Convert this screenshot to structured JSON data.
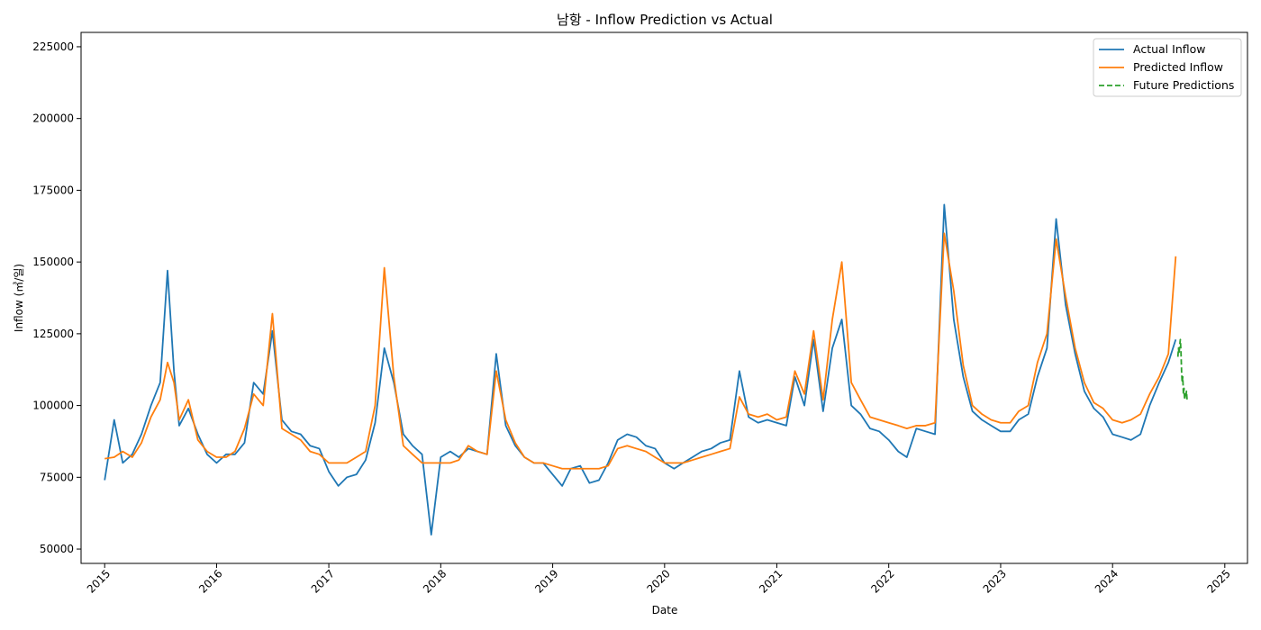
{
  "chart_data": {
    "type": "line",
    "title": "남항 - Inflow Prediction vs Actual",
    "xlabel": "Date",
    "ylabel": "Inflow (㎥/일)",
    "xlim": [
      "2014-10-16",
      "2025-03-16"
    ],
    "ylim": [
      45000,
      230000
    ],
    "x_ticks": [
      "2015",
      "2016",
      "2017",
      "2018",
      "2019",
      "2020",
      "2021",
      "2022",
      "2023",
      "2024",
      "2025"
    ],
    "y_ticks": [
      "50000",
      "75000",
      "100000",
      "125000",
      "150000",
      "175000",
      "200000",
      "225000"
    ],
    "y_tick_values": [
      50000,
      75000,
      100000,
      125000,
      150000,
      175000,
      200000,
      225000
    ],
    "grid": false,
    "legend_position": "top-right",
    "colors": {
      "actual": "#1f77b4",
      "predicted": "#ff7f0e",
      "future": "#2ca02c"
    },
    "series": [
      {
        "name": "Actual Inflow",
        "style": "solid",
        "x": [
          "2015-01-01",
          "2015-02-01",
          "2015-03-01",
          "2015-04-01",
          "2015-05-01",
          "2015-06-01",
          "2015-07-01",
          "2015-07-25",
          "2015-08-15",
          "2015-09-01",
          "2015-10-01",
          "2015-11-01",
          "2015-12-01",
          "2016-01-01",
          "2016-02-01",
          "2016-03-01",
          "2016-04-01",
          "2016-05-01",
          "2016-06-01",
          "2016-07-01",
          "2016-08-01",
          "2016-09-01",
          "2016-10-01",
          "2016-11-01",
          "2016-12-01",
          "2017-01-01",
          "2017-02-01",
          "2017-03-01",
          "2017-04-01",
          "2017-05-01",
          "2017-06-01",
          "2017-07-01",
          "2017-08-01",
          "2017-09-01",
          "2017-10-01",
          "2017-11-01",
          "2017-12-01",
          "2018-01-01",
          "2018-02-01",
          "2018-03-01",
          "2018-04-01",
          "2018-05-01",
          "2018-06-01",
          "2018-07-01",
          "2018-08-01",
          "2018-09-01",
          "2018-10-01",
          "2018-11-01",
          "2018-12-01",
          "2019-01-01",
          "2019-02-01",
          "2019-03-01",
          "2019-04-01",
          "2019-05-01",
          "2019-06-01",
          "2019-07-01",
          "2019-08-01",
          "2019-09-01",
          "2019-10-01",
          "2019-11-01",
          "2019-12-01",
          "2020-01-01",
          "2020-02-01",
          "2020-03-01",
          "2020-04-01",
          "2020-05-01",
          "2020-06-01",
          "2020-07-01",
          "2020-08-01",
          "2020-09-01",
          "2020-10-01",
          "2020-11-01",
          "2020-12-01",
          "2021-01-01",
          "2021-02-01",
          "2021-03-01",
          "2021-04-01",
          "2021-05-01",
          "2021-06-01",
          "2021-07-01",
          "2021-08-01",
          "2021-09-01",
          "2021-10-01",
          "2021-11-01",
          "2021-12-01",
          "2022-01-01",
          "2022-02-01",
          "2022-03-01",
          "2022-04-01",
          "2022-05-01",
          "2022-06-01",
          "2022-07-01",
          "2022-08-01",
          "2022-09-01",
          "2022-10-01",
          "2022-11-01",
          "2022-12-01",
          "2023-01-01",
          "2023-02-01",
          "2023-03-01",
          "2023-04-01",
          "2023-05-01",
          "2023-06-01",
          "2023-07-01",
          "2023-08-01",
          "2023-09-01",
          "2023-10-01",
          "2023-11-01",
          "2023-12-01",
          "2024-01-01",
          "2024-02-01",
          "2024-03-01",
          "2024-04-01",
          "2024-05-01",
          "2024-06-01",
          "2024-07-01",
          "2024-07-25"
        ],
        "y": [
          74000,
          95000,
          80000,
          83000,
          90000,
          100000,
          108000,
          147000,
          112000,
          93000,
          99000,
          90000,
          83000,
          80000,
          83000,
          83000,
          87000,
          108000,
          104000,
          126000,
          95000,
          91000,
          90000,
          86000,
          85000,
          77000,
          72000,
          75000,
          76000,
          81000,
          94000,
          120000,
          108000,
          90000,
          86000,
          83000,
          55000,
          82000,
          84000,
          82000,
          85000,
          84000,
          83000,
          118000,
          93000,
          86000,
          82000,
          80000,
          80000,
          76000,
          72000,
          78000,
          79000,
          73000,
          74000,
          80000,
          88000,
          90000,
          89000,
          86000,
          85000,
          80000,
          78000,
          80000,
          82000,
          84000,
          85000,
          87000,
          88000,
          112000,
          96000,
          94000,
          95000,
          94000,
          93000,
          110000,
          100000,
          123000,
          98000,
          120000,
          130000,
          100000,
          97000,
          92000,
          91000,
          88000,
          84000,
          82000,
          92000,
          91000,
          90000,
          170000,
          130000,
          110000,
          98000,
          95000,
          93000,
          91000,
          91000,
          95000,
          97000,
          110000,
          120000,
          165000,
          135000,
          118000,
          105000,
          99000,
          96000,
          90000,
          89000,
          88000,
          90000,
          100000,
          108000,
          115000,
          123000
        ]
      },
      {
        "name": "Predicted Inflow",
        "style": "solid",
        "x": [
          "2015-01-01",
          "2015-02-01",
          "2015-03-01",
          "2015-04-01",
          "2015-05-01",
          "2015-06-01",
          "2015-07-01",
          "2015-07-25",
          "2015-08-15",
          "2015-09-01",
          "2015-10-01",
          "2015-11-01",
          "2015-12-01",
          "2016-01-01",
          "2016-02-01",
          "2016-03-01",
          "2016-04-01",
          "2016-05-01",
          "2016-06-01",
          "2016-07-01",
          "2016-08-01",
          "2016-09-01",
          "2016-10-01",
          "2016-11-01",
          "2016-12-01",
          "2017-01-01",
          "2017-02-01",
          "2017-03-01",
          "2017-04-01",
          "2017-05-01",
          "2017-06-01",
          "2017-07-01",
          "2017-08-01",
          "2017-09-01",
          "2017-10-01",
          "2017-11-01",
          "2017-12-01",
          "2018-01-01",
          "2018-02-01",
          "2018-03-01",
          "2018-04-01",
          "2018-05-01",
          "2018-06-01",
          "2018-07-01",
          "2018-08-01",
          "2018-09-01",
          "2018-10-01",
          "2018-11-01",
          "2018-12-01",
          "2019-01-01",
          "2019-02-01",
          "2019-03-01",
          "2019-04-01",
          "2019-05-01",
          "2019-06-01",
          "2019-07-01",
          "2019-08-01",
          "2019-09-01",
          "2019-10-01",
          "2019-11-01",
          "2019-12-01",
          "2020-01-01",
          "2020-02-01",
          "2020-03-01",
          "2020-04-01",
          "2020-05-01",
          "2020-06-01",
          "2020-07-01",
          "2020-08-01",
          "2020-09-01",
          "2020-10-01",
          "2020-11-01",
          "2020-12-01",
          "2021-01-01",
          "2021-02-01",
          "2021-03-01",
          "2021-04-01",
          "2021-05-01",
          "2021-06-01",
          "2021-07-01",
          "2021-08-01",
          "2021-09-01",
          "2021-10-01",
          "2021-11-01",
          "2021-12-01",
          "2022-01-01",
          "2022-02-01",
          "2022-03-01",
          "2022-04-01",
          "2022-05-01",
          "2022-06-01",
          "2022-07-01",
          "2022-08-01",
          "2022-09-01",
          "2022-10-01",
          "2022-11-01",
          "2022-12-01",
          "2023-01-01",
          "2023-02-01",
          "2023-03-01",
          "2023-04-01",
          "2023-05-01",
          "2023-06-01",
          "2023-07-01",
          "2023-08-01",
          "2023-09-01",
          "2023-10-01",
          "2023-11-01",
          "2023-12-01",
          "2024-01-01",
          "2024-02-01",
          "2024-03-01",
          "2024-04-01",
          "2024-05-01",
          "2024-06-01",
          "2024-07-01",
          "2024-07-25"
        ],
        "y": [
          81500,
          82000,
          84000,
          82000,
          87000,
          96000,
          102000,
          115000,
          108000,
          95000,
          102000,
          88000,
          84000,
          82000,
          82000,
          84000,
          92000,
          104000,
          100000,
          132000,
          92000,
          90000,
          88000,
          84000,
          83000,
          80000,
          80000,
          80000,
          82000,
          84000,
          100000,
          148000,
          110000,
          86000,
          83000,
          80000,
          80000,
          80000,
          80000,
          81000,
          86000,
          84000,
          83000,
          112000,
          95000,
          87000,
          82000,
          80000,
          80000,
          79000,
          78000,
          78000,
          78000,
          78000,
          78000,
          79000,
          85000,
          86000,
          85000,
          84000,
          82000,
          80000,
          80000,
          80000,
          81000,
          82000,
          83000,
          84000,
          85000,
          103000,
          97000,
          96000,
          97000,
          95000,
          96000,
          112000,
          104000,
          126000,
          102000,
          130000,
          150000,
          108000,
          102000,
          96000,
          95000,
          94000,
          93000,
          92000,
          93000,
          93000,
          94000,
          160000,
          140000,
          114000,
          100000,
          97000,
          95000,
          94000,
          94000,
          98000,
          100000,
          115000,
          125000,
          158000,
          138000,
          120000,
          108000,
          101000,
          99000,
          95000,
          94000,
          95000,
          97000,
          104000,
          110000,
          118000,
          152000
        ]
      },
      {
        "name": "Future Predictions",
        "style": "dashed",
        "x": [
          "2024-08-01",
          "2024-08-03",
          "2024-08-05",
          "2024-08-07",
          "2024-08-09",
          "2024-08-11",
          "2024-08-13",
          "2024-08-15",
          "2024-08-17",
          "2024-08-19",
          "2024-08-21",
          "2024-08-23",
          "2024-08-25",
          "2024-08-27",
          "2024-08-29",
          "2024-08-31"
        ],
        "y": [
          117000,
          120000,
          118000,
          121000,
          123000,
          119000,
          112000,
          108000,
          110000,
          104000,
          106000,
          102000,
          104000,
          103000,
          105000,
          102000
        ]
      }
    ]
  }
}
